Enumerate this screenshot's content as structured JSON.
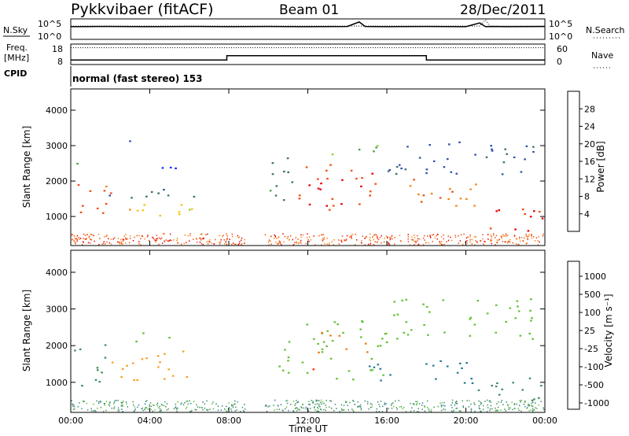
{
  "header": {
    "station": "Pykkvibaer (fitACF)",
    "beam": "Beam 01",
    "date": "28/Dec/2011"
  },
  "chart_data": [
    {
      "type": "line",
      "panel": "noise",
      "left_label": "N.Sky",
      "right_label": "N.Search",
      "yticks_left": [
        "10^5",
        "10^0"
      ],
      "yticks_right": [
        "10^5",
        "10^0"
      ],
      "x_hours": [
        0,
        2,
        4,
        6,
        8,
        10,
        12,
        14,
        14.6,
        14.9,
        16,
        18,
        20,
        20.7,
        21.0,
        21.2,
        22,
        24
      ],
      "sky_level": [
        0.38,
        0.37,
        0.38,
        0.37,
        0.38,
        0.37,
        0.38,
        0.37,
        0.15,
        0.37,
        0.38,
        0.37,
        0.38,
        0.2,
        0.38,
        0.37,
        0.38,
        0.37
      ],
      "search_level": [
        0.35,
        0.35,
        0.35,
        0.35,
        0.35,
        0.35,
        0.35,
        0.35,
        0.35,
        0.35,
        0.35,
        0.35,
        0.35,
        0.35,
        0.05,
        0.35,
        0.35,
        0.35
      ]
    },
    {
      "type": "line",
      "panel": "frequency",
      "left_label_1": "Freq.",
      "left_label_2": "[MHz]",
      "right_label": "Nave",
      "yticks_left": [
        "18",
        "8"
      ],
      "yticks_right": [
        "60",
        "0"
      ],
      "freq_segments": [
        {
          "from": 0,
          "to": 7.9,
          "mhz": 10.2
        },
        {
          "from": 7.9,
          "to": 18.0,
          "mhz": 12.3
        },
        {
          "from": 18.0,
          "to": 24,
          "mhz": 10.2
        }
      ],
      "nave_level": 0.82
    },
    {
      "type": "heatmap",
      "panel": "cpid",
      "label": "CPID",
      "text": "normal (fast stereo) 153"
    },
    {
      "type": "heatmap",
      "panel": "power",
      "ylabel": "Slant Range [km]",
      "yticks": [
        "1000",
        "2000",
        "3000",
        "4000"
      ],
      "ylim": [
        180,
        4600
      ],
      "colorbar_label": "Power [dB]",
      "colorbar_ticks": [
        "4",
        "8",
        "12",
        "16",
        "20",
        "24",
        "28"
      ],
      "colorbar_colors": [
        "#0a28ff",
        "#2e4fae",
        "#3a6f6a",
        "#4e9a54",
        "#8bd32c",
        "#f6c312",
        "#f68412",
        "#f24a0e",
        "#e60000"
      ],
      "features": [
        {
          "t0": 0.0,
          "t1": 2.0,
          "r0": 900,
          "r1": 2050,
          "v": 26
        },
        {
          "t0": 2.0,
          "t1": 6.2,
          "r0": 1000,
          "r1": 1500,
          "v": 20
        },
        {
          "t0": 1.9,
          "t1": 6.4,
          "r0": 1500,
          "r1": 1900,
          "v": 8
        },
        {
          "t0": 3.0,
          "t1": 5.5,
          "r0": 2200,
          "r1": 2500,
          "v": 4
        },
        {
          "t0": 2.0,
          "t1": 3.2,
          "r0": 2900,
          "r1": 3150,
          "v": 6
        },
        {
          "t0": 0.0,
          "t1": 1.5,
          "r0": 2400,
          "r1": 2600,
          "v": 12
        },
        {
          "t0": 11.5,
          "t1": 16.0,
          "r0": 1200,
          "r1": 2500,
          "v": 27
        },
        {
          "t0": 16.0,
          "t1": 20.5,
          "r0": 1300,
          "r1": 2100,
          "v": 24
        },
        {
          "t0": 20.5,
          "t1": 24.0,
          "r0": 600,
          "r1": 1300,
          "v": 28
        },
        {
          "t0": 10.0,
          "t1": 11.5,
          "r0": 1400,
          "r1": 2800,
          "v": 10
        },
        {
          "t0": 12.5,
          "t1": 15.5,
          "r0": 2700,
          "r1": 3100,
          "v": 14
        },
        {
          "t0": 16.0,
          "t1": 23.5,
          "r0": 2200,
          "r1": 3200,
          "v": 6
        }
      ]
    },
    {
      "type": "heatmap",
      "panel": "velocity",
      "ylabel": "Slant Range [km]",
      "yticks": [
        "1000",
        "2000",
        "3000",
        "4000"
      ],
      "ylim": [
        180,
        4600
      ],
      "colorbar_label": "Velocity [m s⁻¹]",
      "colorbar_ticks": [
        "1000",
        "500",
        "100",
        "25",
        "-25",
        "-100",
        "-500",
        "-1000"
      ],
      "colorbar_colors": [
        "#1f3fb0",
        "#2a7a9a",
        "#3e8f62",
        "#62c232",
        "#c6c6c6",
        "#f6a024",
        "#ef7a12",
        "#ff2a00"
      ],
      "x_ticks": [
        "00:00",
        "04:00",
        "08:00",
        "12:00",
        "16:00",
        "20:00",
        "00:00"
      ],
      "x_label": "Time UT",
      "features": [
        {
          "t0": 0.0,
          "t1": 2.0,
          "r0": 900,
          "r1": 2050,
          "v": 100
        },
        {
          "t0": 2.0,
          "t1": 6.4,
          "r0": 1000,
          "r1": 1900,
          "v": -100
        },
        {
          "t0": 3.0,
          "t1": 5.5,
          "r0": 2100,
          "r1": 2400,
          "v": 0
        },
        {
          "t0": 10.5,
          "t1": 16.0,
          "r0": 1100,
          "r1": 2700,
          "v": 0
        },
        {
          "t0": 12.5,
          "t1": 15.0,
          "r0": 1800,
          "r1": 2400,
          "v": -500
        },
        {
          "t0": 15.0,
          "t1": 20.5,
          "r0": 900,
          "r1": 1600,
          "v": 500
        },
        {
          "t0": 20.5,
          "t1": 24.0,
          "r0": 500,
          "r1": 1300,
          "v": 100
        },
        {
          "t0": 16.0,
          "t1": 23.5,
          "r0": 2200,
          "r1": 3300,
          "v": 0
        },
        {
          "t0": 12.0,
          "t1": 12.3,
          "r0": 700,
          "r1": 1600,
          "v": -1000
        }
      ]
    }
  ]
}
